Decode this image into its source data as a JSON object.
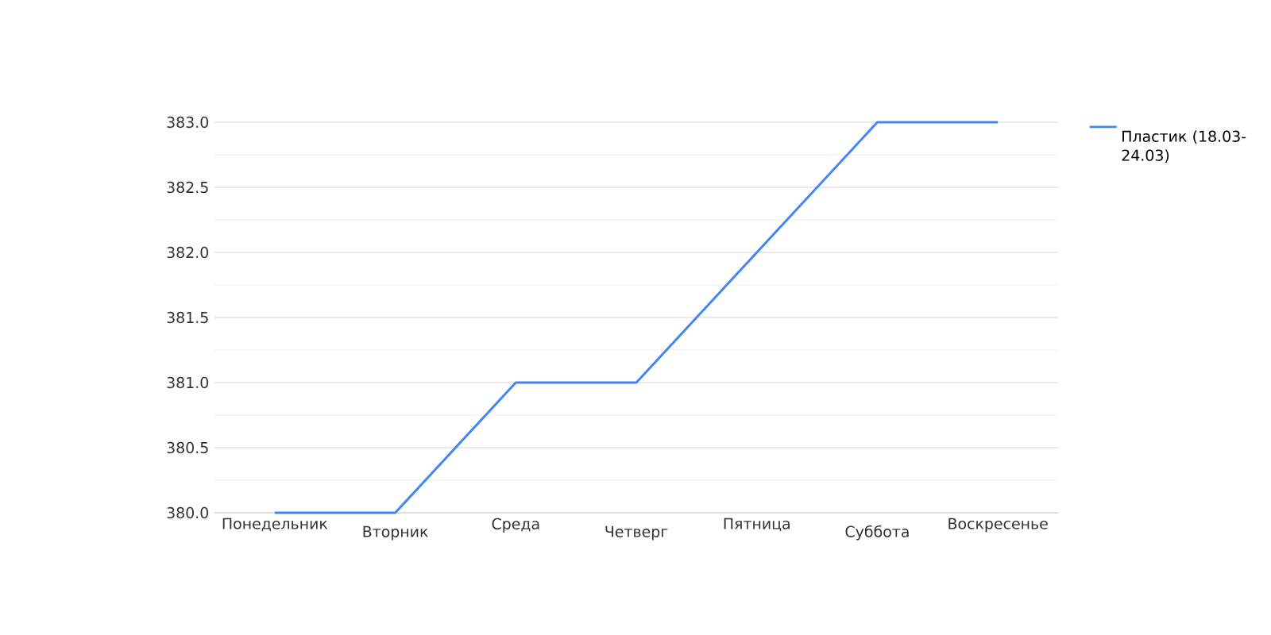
{
  "chart_data": {
    "type": "line",
    "categories": [
      "Понедельник",
      "Вторник",
      "Среда",
      "Четверг",
      "Пятница",
      "Суббота",
      "Воскресенье"
    ],
    "series": [
      {
        "name": "Пластик (18.03-24.03)",
        "color": "#4285f4",
        "values": [
          380,
          380,
          381,
          381,
          382,
          383,
          383
        ]
      }
    ],
    "ylim": [
      380,
      383
    ],
    "yticks": [
      {
        "value": 380,
        "label": "380.0"
      },
      {
        "value": 380.5,
        "label": "380.5"
      },
      {
        "value": 381,
        "label": "381.0"
      },
      {
        "value": 381.5,
        "label": "381.5"
      },
      {
        "value": 382,
        "label": "382.0"
      },
      {
        "value": 382.5,
        "label": "382.5"
      },
      {
        "value": 383,
        "label": "383.0"
      }
    ],
    "grid": "y",
    "legend": "top right",
    "marker": "none",
    "line_style": "solid"
  }
}
